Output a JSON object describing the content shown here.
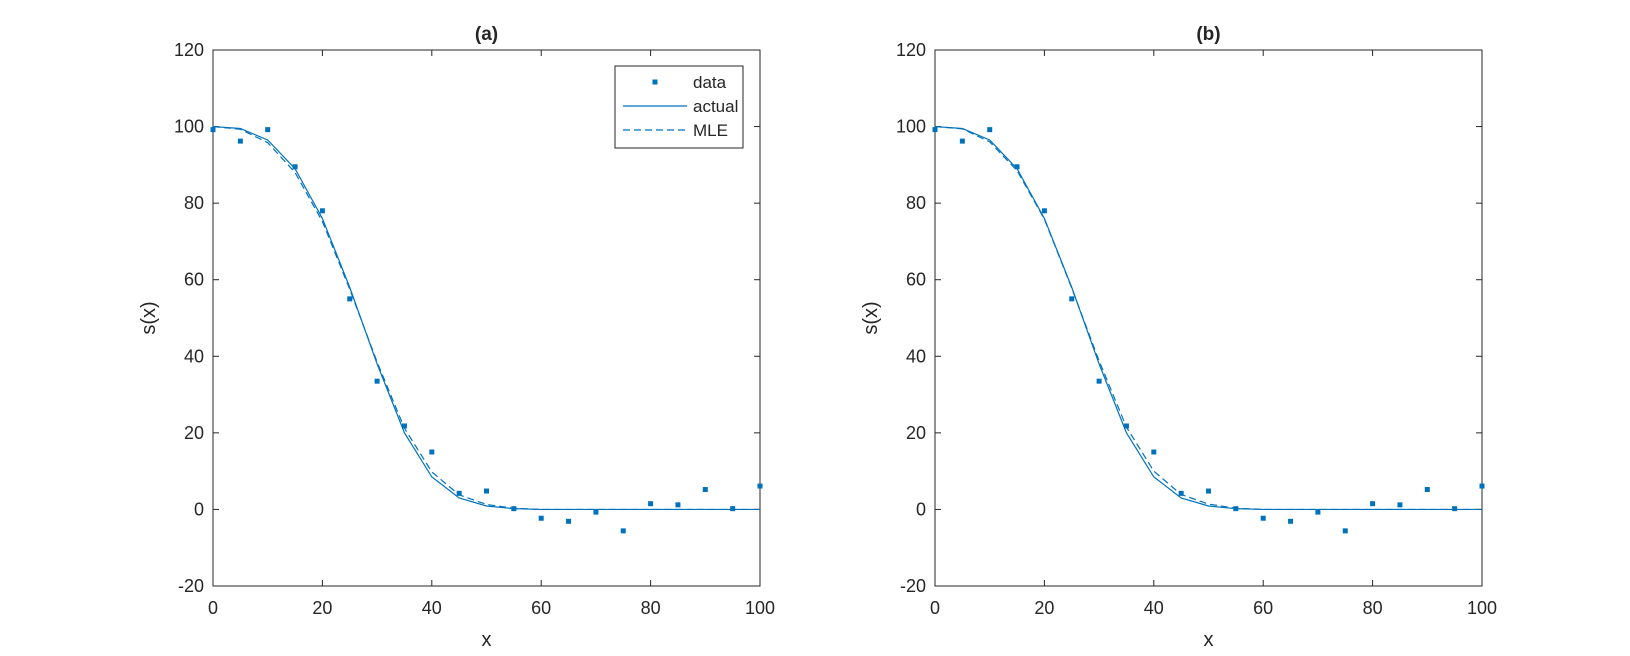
{
  "colors": {
    "series": "#0072BD",
    "axes": "#262626",
    "background": "#ffffff"
  },
  "chart_data": [
    {
      "type": "line",
      "title": "(a)",
      "xlabel": "x",
      "ylabel": "s(x)",
      "xlim": [
        0,
        100
      ],
      "ylim": [
        -20,
        120
      ],
      "xticks": [
        0,
        20,
        40,
        60,
        80,
        100
      ],
      "yticks": [
        -20,
        0,
        20,
        40,
        60,
        80,
        100,
        120
      ],
      "grid": false,
      "legend": {
        "placement": "top-right",
        "entries": [
          "data",
          "actual",
          "MLE"
        ]
      },
      "series": [
        {
          "name": "data",
          "style": "markers",
          "x": [
            0,
            5,
            10,
            15,
            20,
            25,
            30,
            35,
            40,
            45,
            50,
            55,
            60,
            65,
            70,
            75,
            80,
            85,
            90,
            95,
            100
          ],
          "y": [
            99.2,
            96.2,
            99.2,
            89.5,
            78,
            55,
            33.5,
            21.8,
            15,
            4.2,
            4.8,
            0.2,
            -2.3,
            -3.1,
            -0.7,
            -5.6,
            1.5,
            1.2,
            5.2,
            0.2,
            6.1
          ]
        },
        {
          "name": "actual",
          "style": "solid",
          "x": [
            0,
            5,
            10,
            15,
            20,
            25,
            30,
            35,
            40,
            45,
            50,
            55,
            60,
            65,
            70,
            75,
            80,
            85,
            90,
            95,
            100
          ],
          "y": [
            100,
            99.5,
            96.5,
            89,
            76,
            58,
            38,
            20,
            8.5,
            3,
            0.9,
            0.2,
            0,
            0,
            0,
            0,
            0,
            0,
            0,
            0,
            0
          ]
        },
        {
          "name": "MLE",
          "style": "dashed",
          "x": [
            0,
            5,
            10,
            15,
            20,
            25,
            30,
            35,
            40,
            45,
            50,
            55,
            60,
            65,
            70,
            75,
            80,
            85,
            90,
            95,
            100
          ],
          "y": [
            100,
            99.3,
            95.8,
            88,
            75.2,
            57.5,
            38.5,
            21.2,
            9.8,
            3.8,
            1.3,
            0.3,
            0,
            0,
            0,
            0,
            0,
            0,
            0,
            0,
            0
          ]
        }
      ]
    },
    {
      "type": "line",
      "title": "(b)",
      "xlabel": "x",
      "ylabel": "s(x)",
      "xlim": [
        0,
        100
      ],
      "ylim": [
        -20,
        120
      ],
      "xticks": [
        0,
        20,
        40,
        60,
        80,
        100
      ],
      "yticks": [
        -20,
        0,
        20,
        40,
        60,
        80,
        100,
        120
      ],
      "grid": false,
      "series": [
        {
          "name": "data",
          "style": "markers",
          "x": [
            0,
            5,
            10,
            15,
            20,
            25,
            30,
            35,
            40,
            45,
            50,
            55,
            60,
            65,
            70,
            75,
            80,
            85,
            90,
            95,
            100
          ],
          "y": [
            99.2,
            96.2,
            99.2,
            89.5,
            78,
            55,
            33.5,
            21.8,
            15,
            4.2,
            4.8,
            0.2,
            -2.3,
            -3.1,
            -0.7,
            -5.6,
            1.5,
            1.2,
            5.2,
            0.2,
            6.1
          ]
        },
        {
          "name": "actual",
          "style": "solid",
          "x": [
            0,
            5,
            10,
            15,
            20,
            25,
            30,
            35,
            40,
            45,
            50,
            55,
            60,
            65,
            70,
            75,
            80,
            85,
            90,
            95,
            100
          ],
          "y": [
            100,
            99.5,
            96.5,
            89,
            76,
            58,
            38,
            20,
            8.5,
            3,
            0.9,
            0.2,
            0,
            0,
            0,
            0,
            0,
            0,
            0,
            0,
            0
          ]
        },
        {
          "name": "MLE",
          "style": "dashed",
          "x": [
            0,
            5,
            10,
            15,
            20,
            25,
            30,
            35,
            40,
            45,
            50,
            55,
            60,
            65,
            70,
            75,
            80,
            85,
            90,
            95,
            100
          ],
          "y": [
            100,
            99.4,
            96,
            88.5,
            75.8,
            57.8,
            38.8,
            21.5,
            10,
            3.9,
            1.4,
            0.3,
            0,
            0,
            0,
            0,
            0,
            0,
            0,
            0,
            0
          ]
        }
      ]
    }
  ]
}
